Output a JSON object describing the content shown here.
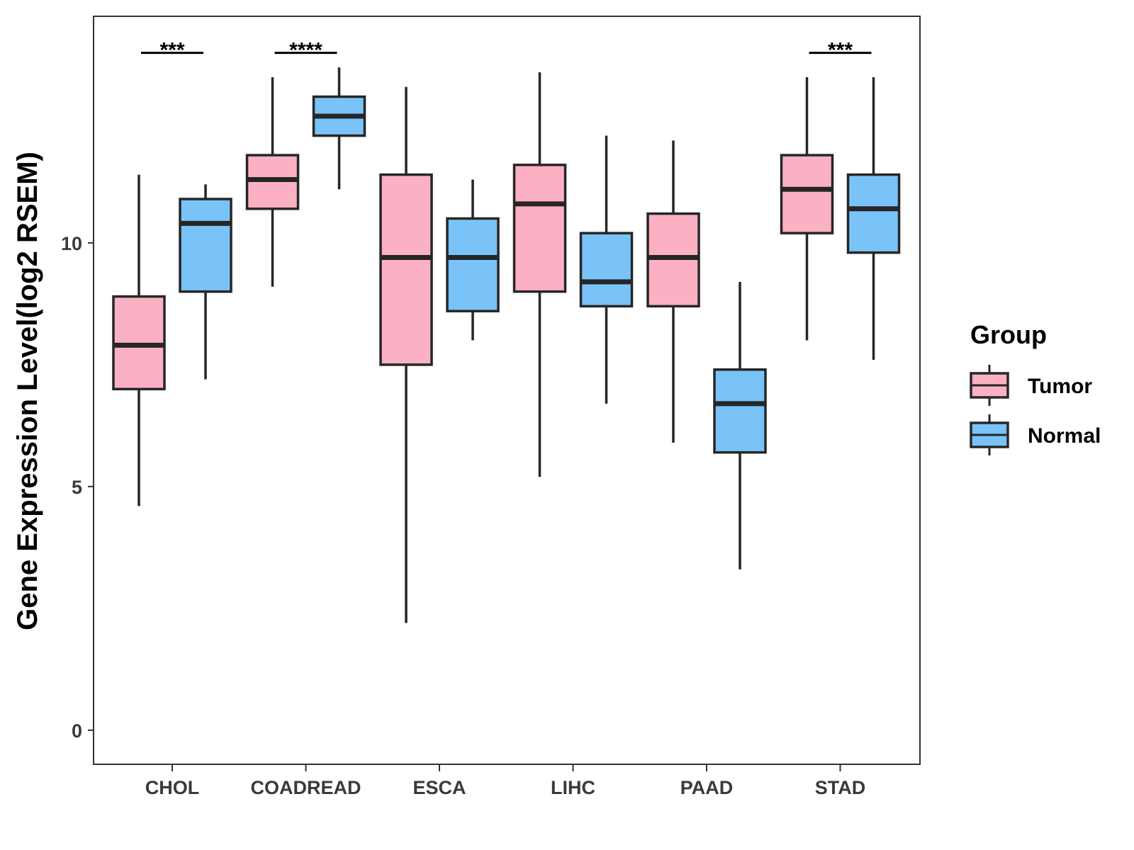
{
  "chart_data": {
    "type": "boxplot",
    "title": "",
    "xlabel": "",
    "ylabel": "Gene Expression Level(log2 RSEM)",
    "ylim": [
      -0.7,
      14.65
    ],
    "yticks": [
      0,
      5,
      10
    ],
    "grid": false,
    "legend": {
      "title": "Group",
      "placement": "right",
      "entries": [
        "Tumor",
        "Normal"
      ]
    },
    "colors": {
      "Tumor": "#fbb1c3",
      "Normal": "#79c3f8",
      "outline": "#262626"
    },
    "categories": [
      "CHOL",
      "COADREAD",
      "ESCA",
      "LIHC",
      "PAAD",
      "STAD"
    ],
    "series": [
      {
        "name": "Tumor",
        "boxes": [
          {
            "min": 4.6,
            "q1": 7.0,
            "median": 7.9,
            "q3": 8.9,
            "max": 11.4
          },
          {
            "min": 9.1,
            "q1": 10.7,
            "median": 11.3,
            "q3": 11.8,
            "max": 13.4
          },
          {
            "min": 2.2,
            "q1": 7.5,
            "median": 9.7,
            "q3": 11.4,
            "max": 13.2
          },
          {
            "min": 5.2,
            "q1": 9.0,
            "median": 10.8,
            "q3": 11.6,
            "max": 13.5
          },
          {
            "min": 5.9,
            "q1": 8.7,
            "median": 9.7,
            "q3": 10.6,
            "max": 12.1
          },
          {
            "min": 8.0,
            "q1": 10.2,
            "median": 11.1,
            "q3": 11.8,
            "max": 13.4
          }
        ]
      },
      {
        "name": "Normal",
        "boxes": [
          {
            "min": 7.2,
            "q1": 9.0,
            "median": 10.4,
            "q3": 10.9,
            "max": 11.2
          },
          {
            "min": 11.1,
            "q1": 12.2,
            "median": 12.6,
            "q3": 13.0,
            "max": 13.6
          },
          {
            "min": 8.0,
            "q1": 8.6,
            "median": 9.7,
            "q3": 10.5,
            "max": 11.3
          },
          {
            "min": 6.7,
            "q1": 8.7,
            "median": 9.2,
            "q3": 10.2,
            "max": 12.2
          },
          {
            "min": 3.3,
            "q1": 5.7,
            "median": 6.7,
            "q3": 7.4,
            "max": 9.2
          },
          {
            "min": 7.6,
            "q1": 9.8,
            "median": 10.7,
            "q3": 11.4,
            "max": 13.4
          }
        ]
      }
    ],
    "annotations": [
      {
        "category": "CHOL",
        "label": "***",
        "y": 13.9
      },
      {
        "category": "COADREAD",
        "label": "****",
        "y": 13.9
      },
      {
        "category": "STAD",
        "label": "***",
        "y": 13.9
      }
    ]
  }
}
